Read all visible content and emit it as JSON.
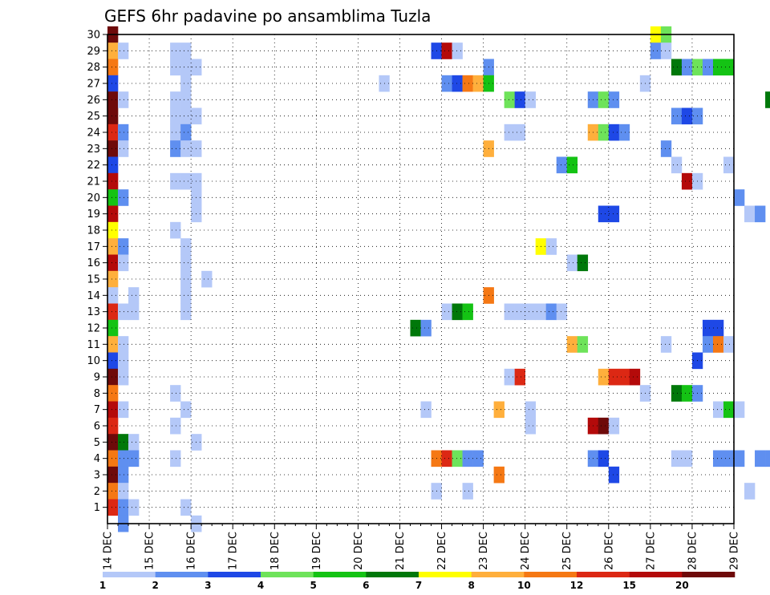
{
  "chart_data": {
    "type": "heatmap",
    "title": "GEFS 6hr padavine po ansamblima Tuzla",
    "x_range": [
      0,
      15
    ],
    "y_range": [
      0,
      30
    ],
    "x_ticks": [
      {
        "x": 0,
        "label": "14 DEC"
      },
      {
        "x": 1,
        "label": "15 DEC"
      },
      {
        "x": 2,
        "label": "16 DEC"
      },
      {
        "x": 3,
        "label": "17 DEC"
      },
      {
        "x": 4,
        "label": "18 DEC"
      },
      {
        "x": 5,
        "label": "19 DEC"
      },
      {
        "x": 6,
        "label": "20 DEC"
      },
      {
        "x": 7,
        "label": "21 DEC"
      },
      {
        "x": 8,
        "label": "22 DEC"
      },
      {
        "x": 9,
        "label": "23 DEC"
      },
      {
        "x": 10,
        "label": "24 DEC"
      },
      {
        "x": 11,
        "label": "25 DEC"
      },
      {
        "x": 12,
        "label": "26 DEC"
      },
      {
        "x": 13,
        "label": "27 DEC"
      },
      {
        "x": 14,
        "label": "28 DEC"
      },
      {
        "x": 15,
        "label": "29 DEC"
      }
    ],
    "y_ticks": [
      "1",
      "2",
      "3",
      "4",
      "5",
      "6",
      "7",
      "8",
      "9",
      "10",
      "11",
      "12",
      "13",
      "14",
      "15",
      "16",
      "17",
      "18",
      "19",
      "20",
      "21",
      "22",
      "23",
      "24",
      "25",
      "26",
      "27",
      "28",
      "29",
      "30"
    ],
    "grid": true,
    "colorbar": {
      "colors": [
        "#b4c8f8",
        "#5f8ff0",
        "#1e48e6",
        "#6ee35a",
        "#14c314",
        "#00780a",
        "#ffff00",
        "#ffaf3c",
        "#f57814",
        "#dc2814",
        "#b40a0a",
        "#6e0a0a"
      ],
      "labels": [
        "1",
        "2",
        "3",
        "4",
        "5",
        "6",
        "7",
        "8",
        "10",
        "12",
        "15",
        "20"
      ]
    },
    "cells": [
      [
        0,
        30,
        11
      ],
      [
        0,
        29,
        7
      ],
      [
        0,
        28,
        8
      ],
      [
        0,
        27,
        2
      ],
      [
        0,
        26,
        11
      ],
      [
        0,
        25,
        11
      ],
      [
        0,
        24,
        9
      ],
      [
        0,
        23,
        11
      ],
      [
        0,
        22,
        2
      ],
      [
        0,
        21,
        10
      ],
      [
        0,
        20,
        4
      ],
      [
        0,
        19,
        10
      ],
      [
        0,
        18,
        6
      ],
      [
        0,
        17,
        7
      ],
      [
        0,
        16,
        10
      ],
      [
        0,
        15,
        7
      ],
      [
        0,
        14,
        0
      ],
      [
        0,
        13,
        9
      ],
      [
        0,
        12,
        4
      ],
      [
        0,
        11,
        7
      ],
      [
        0,
        10,
        2
      ],
      [
        0,
        9,
        11
      ],
      [
        0,
        8,
        8
      ],
      [
        0,
        7,
        10
      ],
      [
        0,
        6,
        9
      ],
      [
        0,
        5,
        11
      ],
      [
        0,
        4,
        8
      ],
      [
        0,
        3,
        11
      ],
      [
        0,
        2,
        8
      ],
      [
        0,
        1,
        9
      ],
      [
        1,
        29,
        0
      ],
      [
        1,
        26,
        0
      ],
      [
        1,
        24,
        1
      ],
      [
        1,
        23,
        0
      ],
      [
        1,
        20,
        1
      ],
      [
        1,
        17,
        1
      ],
      [
        1,
        16,
        0
      ],
      [
        1,
        13,
        0
      ],
      [
        1,
        11,
        0
      ],
      [
        1,
        10,
        0
      ],
      [
        1,
        9,
        0
      ],
      [
        1,
        7,
        0
      ],
      [
        1,
        5,
        5
      ],
      [
        1,
        4,
        1
      ],
      [
        1,
        3,
        1
      ],
      [
        1,
        2,
        0
      ],
      [
        1,
        1,
        1
      ],
      [
        1,
        0,
        1
      ],
      [
        2,
        14,
        0
      ],
      [
        2,
        13,
        0
      ],
      [
        2,
        5,
        0
      ],
      [
        2,
        4,
        1
      ],
      [
        2,
        1,
        0
      ],
      [
        6,
        29,
        0
      ],
      [
        6,
        28,
        0
      ],
      [
        6,
        26,
        0
      ],
      [
        6,
        25,
        0
      ],
      [
        6,
        24,
        0
      ],
      [
        6,
        23,
        1
      ],
      [
        6,
        21,
        0
      ],
      [
        6,
        18,
        0
      ],
      [
        6,
        8,
        0
      ],
      [
        6,
        6,
        0
      ],
      [
        6,
        4,
        0
      ],
      [
        7,
        29,
        0
      ],
      [
        7,
        28,
        0
      ],
      [
        7,
        27,
        0
      ],
      [
        7,
        26,
        0
      ],
      [
        7,
        25,
        0
      ],
      [
        7,
        24,
        1
      ],
      [
        7,
        23,
        0
      ],
      [
        7,
        21,
        0
      ],
      [
        7,
        17,
        0
      ],
      [
        7,
        16,
        0
      ],
      [
        7,
        15,
        0
      ],
      [
        7,
        14,
        0
      ],
      [
        7,
        13,
        0
      ],
      [
        7,
        7,
        0
      ],
      [
        7,
        1,
        0
      ],
      [
        8,
        28,
        0
      ],
      [
        8,
        25,
        0
      ],
      [
        8,
        23,
        0
      ],
      [
        8,
        21,
        0
      ],
      [
        8,
        20,
        0
      ],
      [
        8,
        19,
        0
      ],
      [
        8,
        5,
        0
      ],
      [
        8,
        0,
        0
      ],
      [
        9,
        15,
        0
      ],
      [
        26,
        27,
        0
      ],
      [
        29,
        12,
        5
      ],
      [
        30,
        12,
        1
      ],
      [
        30,
        7,
        0
      ],
      [
        31,
        29,
        2
      ],
      [
        31,
        4,
        8
      ],
      [
        31,
        2,
        0
      ],
      [
        32,
        29,
        10
      ],
      [
        32,
        27,
        1
      ],
      [
        32,
        13,
        0
      ],
      [
        32,
        4,
        9
      ],
      [
        33,
        29,
        0
      ],
      [
        33,
        27,
        2
      ],
      [
        33,
        13,
        5
      ],
      [
        33,
        4,
        3
      ],
      [
        34,
        27,
        8
      ],
      [
        34,
        13,
        4
      ],
      [
        34,
        4,
        1
      ],
      [
        34,
        2,
        0
      ],
      [
        35,
        27,
        7
      ],
      [
        35,
        4,
        1
      ],
      [
        36,
        28,
        1
      ],
      [
        36,
        27,
        4
      ],
      [
        36,
        23,
        7
      ],
      [
        36,
        14,
        8
      ],
      [
        37,
        7,
        7
      ],
      [
        37,
        3,
        8
      ],
      [
        38,
        26,
        3
      ],
      [
        38,
        24,
        0
      ],
      [
        38,
        13,
        0
      ],
      [
        38,
        9,
        0
      ],
      [
        39,
        26,
        2
      ],
      [
        39,
        24,
        0
      ],
      [
        39,
        13,
        0
      ],
      [
        39,
        9,
        9
      ],
      [
        40,
        26,
        0
      ],
      [
        40,
        13,
        0
      ],
      [
        40,
        7,
        0
      ],
      [
        40,
        6,
        0
      ],
      [
        41,
        17,
        6
      ],
      [
        41,
        13,
        0
      ],
      [
        42,
        17,
        0
      ],
      [
        42,
        13,
        1
      ],
      [
        43,
        22,
        1
      ],
      [
        43,
        13,
        0
      ],
      [
        44,
        22,
        4
      ],
      [
        44,
        16,
        0
      ],
      [
        44,
        11,
        7
      ],
      [
        45,
        16,
        5
      ],
      [
        45,
        11,
        3
      ],
      [
        46,
        26,
        1
      ],
      [
        46,
        24,
        7
      ],
      [
        46,
        6,
        10
      ],
      [
        46,
        4,
        1
      ],
      [
        47,
        26,
        3
      ],
      [
        47,
        24,
        3
      ],
      [
        47,
        19,
        2
      ],
      [
        47,
        9,
        7
      ],
      [
        47,
        6,
        11
      ],
      [
        47,
        4,
        2
      ],
      [
        48,
        26,
        1
      ],
      [
        48,
        24,
        2
      ],
      [
        48,
        19,
        2
      ],
      [
        48,
        9,
        9
      ],
      [
        48,
        6,
        0
      ],
      [
        48,
        3,
        2
      ],
      [
        49,
        24,
        1
      ],
      [
        49,
        9,
        9
      ],
      [
        50,
        9,
        10
      ],
      [
        51,
        27,
        0
      ],
      [
        51,
        8,
        0
      ],
      [
        52,
        30,
        6
      ],
      [
        52,
        29,
        1
      ],
      [
        53,
        30,
        3
      ],
      [
        53,
        29,
        0
      ],
      [
        53,
        23,
        1
      ],
      [
        53,
        11,
        0
      ],
      [
        54,
        28,
        5
      ],
      [
        54,
        25,
        1
      ],
      [
        54,
        22,
        0
      ],
      [
        54,
        8,
        5
      ],
      [
        54,
        4,
        0
      ],
      [
        55,
        28,
        1
      ],
      [
        55,
        25,
        2
      ],
      [
        55,
        21,
        10
      ],
      [
        55,
        8,
        4
      ],
      [
        55,
        4,
        0
      ],
      [
        56,
        28,
        3
      ],
      [
        56,
        25,
        1
      ],
      [
        56,
        21,
        0
      ],
      [
        56,
        10,
        2
      ],
      [
        56,
        8,
        1
      ],
      [
        57,
        28,
        1
      ],
      [
        57,
        12,
        2
      ],
      [
        57,
        11,
        1
      ],
      [
        58,
        28,
        4
      ],
      [
        58,
        12,
        2
      ],
      [
        58,
        11,
        8
      ],
      [
        58,
        7,
        0
      ],
      [
        58,
        4,
        1
      ],
      [
        59,
        28,
        4
      ],
      [
        59,
        22,
        0
      ],
      [
        59,
        11,
        0
      ],
      [
        59,
        7,
        4
      ],
      [
        59,
        4,
        1
      ],
      [
        60,
        20,
        1
      ],
      [
        60,
        7,
        0
      ],
      [
        60,
        4,
        1
      ],
      [
        61,
        19,
        0
      ],
      [
        61,
        2,
        0
      ],
      [
        62,
        19,
        1
      ],
      [
        62,
        4,
        1
      ],
      [
        63,
        26,
        5
      ],
      [
        63,
        4,
        1
      ],
      [
        64,
        2,
        1
      ],
      [
        65,
        2,
        1
      ],
      [
        66,
        11,
        1
      ],
      [
        66,
        5,
        0
      ],
      [
        66,
        2,
        4
      ],
      [
        67,
        27,
        7
      ],
      [
        67,
        11,
        2
      ],
      [
        67,
        10,
        0
      ],
      [
        67,
        5,
        2
      ],
      [
        67,
        2,
        0
      ]
    ]
  }
}
